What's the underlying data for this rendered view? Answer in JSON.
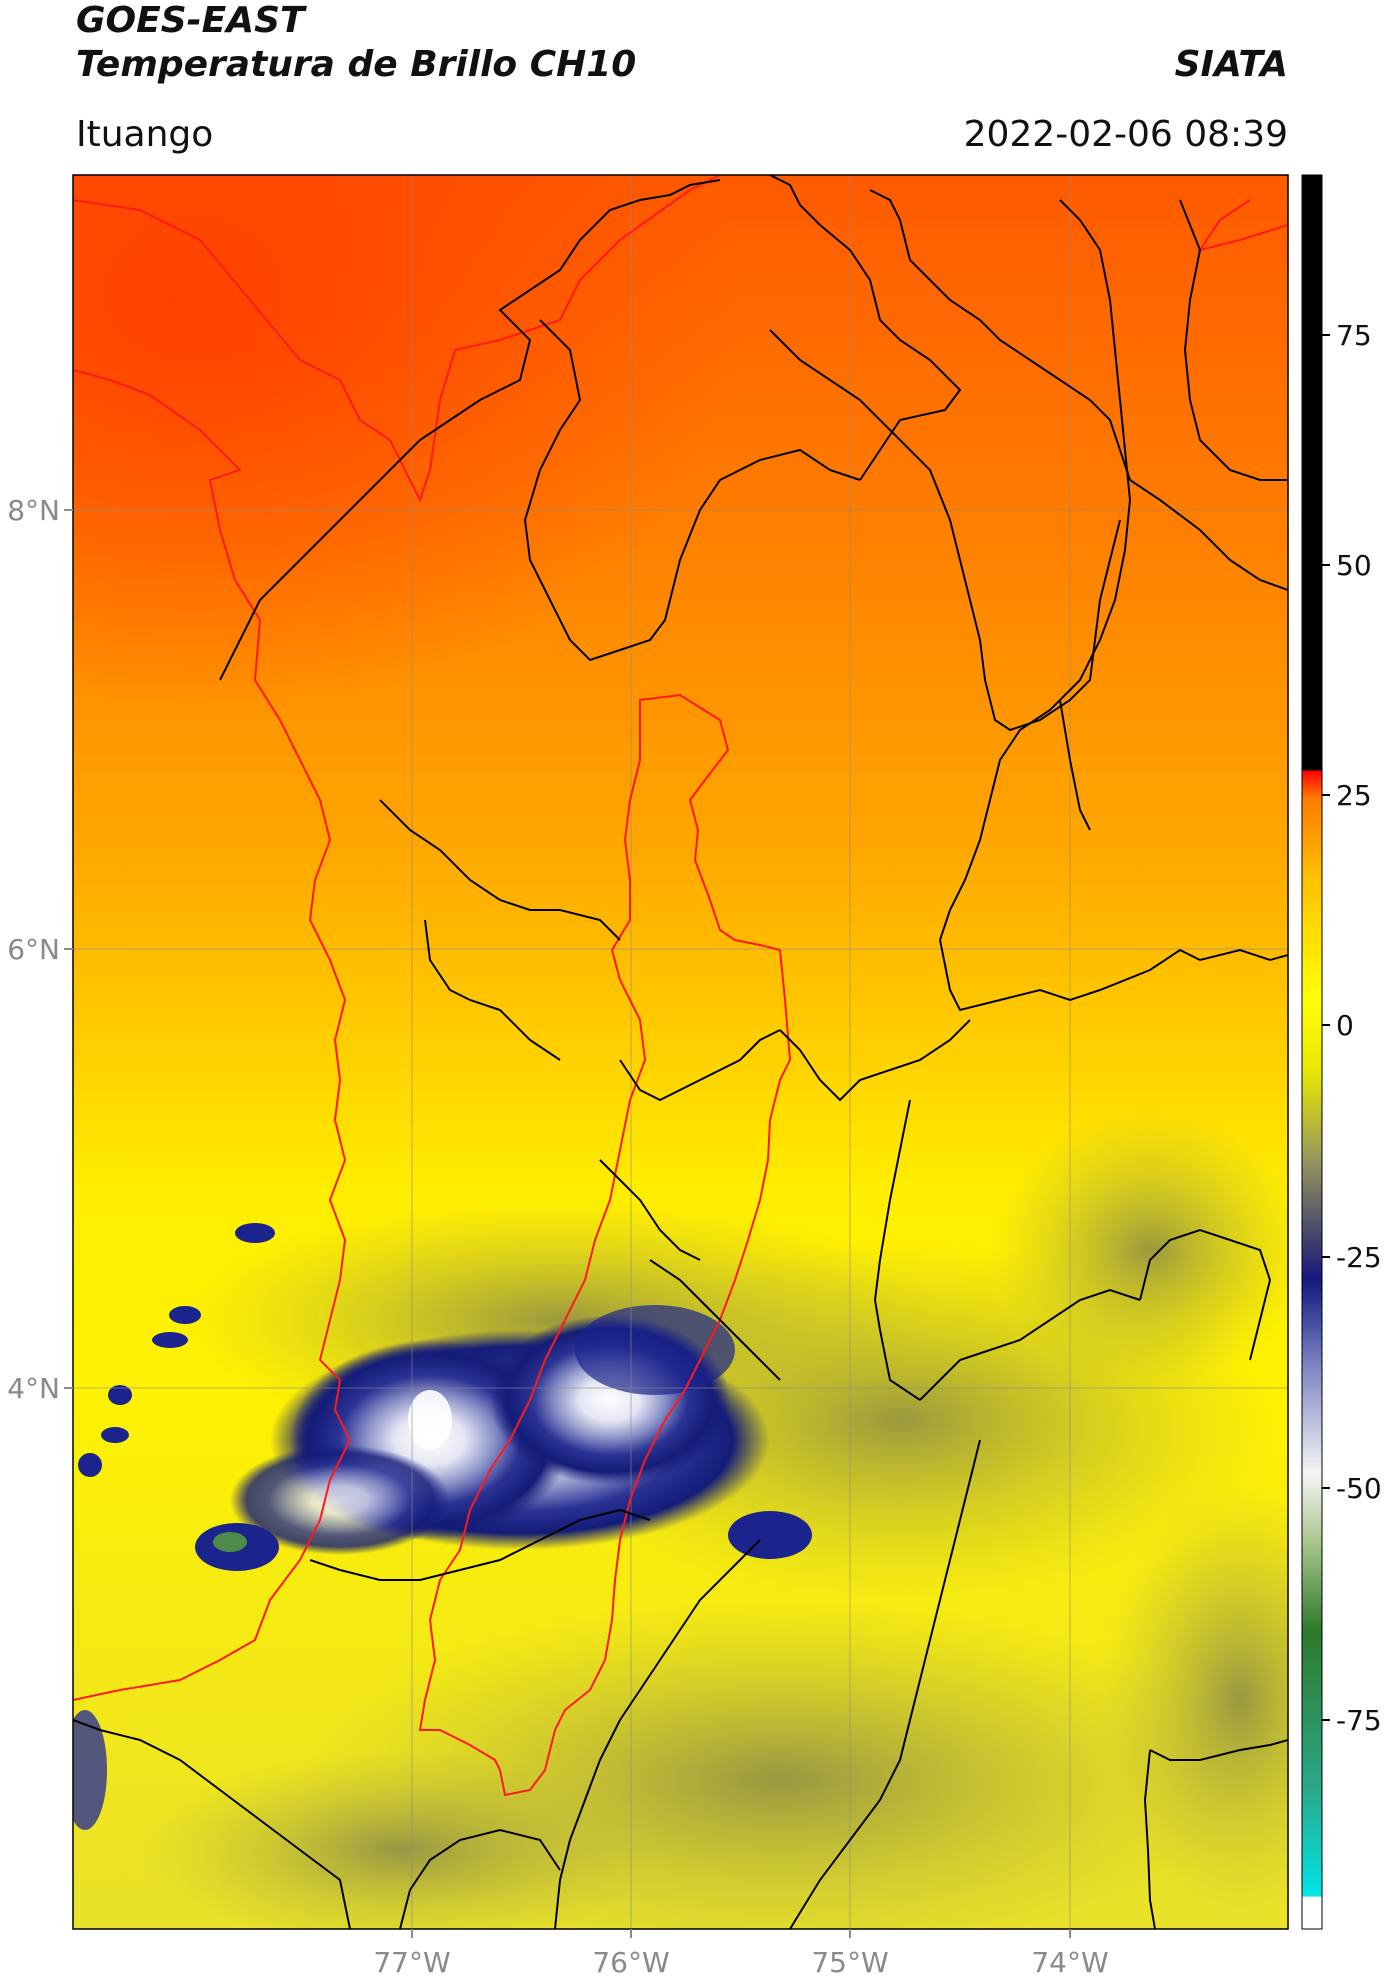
{
  "header": {
    "title_line1": "GOES-EAST",
    "title_line2": "Temperatura de Brillo CH10",
    "brand": "SIATA",
    "region": "Ituango",
    "timestamp": "2022-02-06 08:39"
  },
  "map": {
    "lat_labels": [
      "8°N",
      "6°N",
      "4°N"
    ],
    "lon_labels": [
      "77°W",
      "76°W",
      "75°W",
      "74°W"
    ],
    "colors": {
      "hot": "#ff4d00",
      "warm": "#ff9a00",
      "mild": "#ffee00",
      "cool": "#c8c44a",
      "cold": "#1c2590",
      "coldest": "#f4f4ff",
      "border": "#000000",
      "basin": "#ff1a1a"
    }
  },
  "colorbar": {
    "ticks": [
      "75",
      "50",
      "25",
      "0",
      "-25",
      "-50",
      "-75"
    ]
  }
}
